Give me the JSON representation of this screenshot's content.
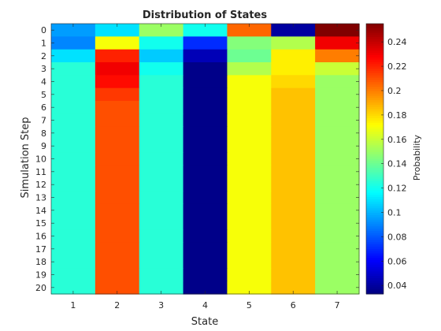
{
  "chart_data": {
    "type": "heatmap",
    "title": "Distribution of States",
    "xlabel": "State",
    "ylabel": "Simulation Step",
    "x_categories": [
      "1",
      "2",
      "3",
      "4",
      "5",
      "6",
      "7"
    ],
    "y_categories": [
      "0",
      "1",
      "2",
      "3",
      "4",
      "5",
      "6",
      "7",
      "8",
      "9",
      "10",
      "11",
      "12",
      "13",
      "14",
      "15",
      "16",
      "17",
      "18",
      "19",
      "20"
    ],
    "values": [
      [
        0.095,
        0.11,
        0.15,
        0.12,
        0.205,
        0.04,
        0.255
      ],
      [
        0.09,
        0.17,
        0.12,
        0.07,
        0.145,
        0.155,
        0.23
      ],
      [
        0.11,
        0.22,
        0.105,
        0.045,
        0.14,
        0.175,
        0.2
      ],
      [
        0.125,
        0.23,
        0.12,
        0.035,
        0.155,
        0.175,
        0.16
      ],
      [
        0.125,
        0.225,
        0.125,
        0.035,
        0.17,
        0.18,
        0.15
      ],
      [
        0.125,
        0.215,
        0.125,
        0.035,
        0.17,
        0.185,
        0.15
      ],
      [
        0.125,
        0.21,
        0.125,
        0.035,
        0.17,
        0.185,
        0.15
      ],
      [
        0.125,
        0.21,
        0.125,
        0.035,
        0.17,
        0.185,
        0.15
      ],
      [
        0.125,
        0.21,
        0.125,
        0.035,
        0.17,
        0.185,
        0.15
      ],
      [
        0.125,
        0.21,
        0.125,
        0.035,
        0.17,
        0.185,
        0.15
      ],
      [
        0.125,
        0.21,
        0.125,
        0.035,
        0.17,
        0.185,
        0.15
      ],
      [
        0.125,
        0.21,
        0.125,
        0.035,
        0.17,
        0.185,
        0.15
      ],
      [
        0.125,
        0.21,
        0.125,
        0.035,
        0.17,
        0.185,
        0.15
      ],
      [
        0.125,
        0.21,
        0.125,
        0.035,
        0.17,
        0.185,
        0.15
      ],
      [
        0.125,
        0.21,
        0.125,
        0.035,
        0.17,
        0.185,
        0.15
      ],
      [
        0.125,
        0.21,
        0.125,
        0.035,
        0.17,
        0.185,
        0.15
      ],
      [
        0.125,
        0.21,
        0.125,
        0.035,
        0.17,
        0.185,
        0.15
      ],
      [
        0.125,
        0.21,
        0.125,
        0.035,
        0.17,
        0.185,
        0.15
      ],
      [
        0.125,
        0.21,
        0.125,
        0.035,
        0.17,
        0.185,
        0.15
      ],
      [
        0.125,
        0.21,
        0.125,
        0.035,
        0.17,
        0.185,
        0.15
      ],
      [
        0.125,
        0.21,
        0.125,
        0.035,
        0.17,
        0.185,
        0.15
      ]
    ],
    "colorbar": {
      "label": "Probability",
      "range": [
        0.033,
        0.255
      ],
      "ticks": [
        0.04,
        0.06,
        0.08,
        0.1,
        0.12,
        0.14,
        0.16,
        0.18,
        0.2,
        0.22,
        0.24
      ],
      "tick_labels": [
        "0.04",
        "0.06",
        "0.08",
        "0.1",
        "0.12",
        "0.14",
        "0.16",
        "0.18",
        "0.2",
        "0.22",
        "0.24"
      ],
      "colormap": "jet"
    },
    "grid": false
  }
}
